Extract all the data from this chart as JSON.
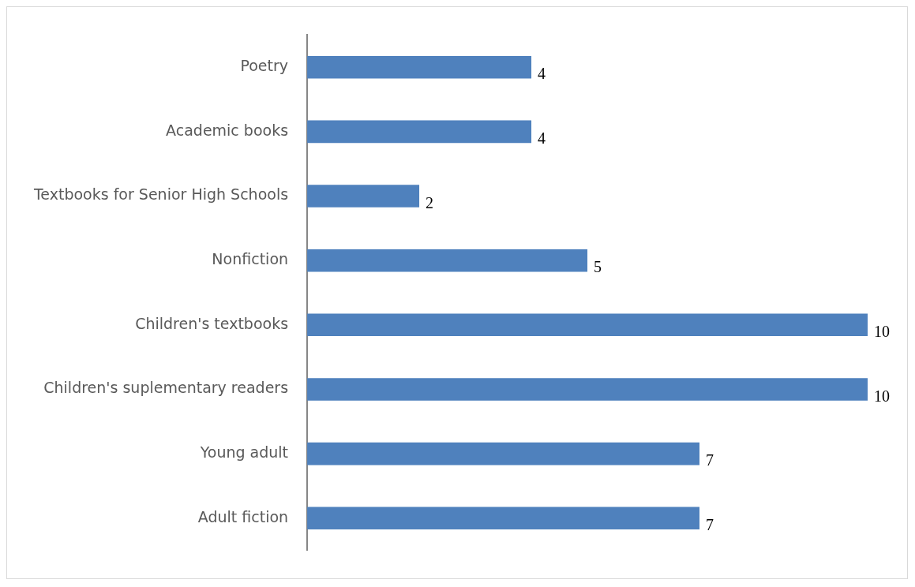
{
  "chart_data": {
    "type": "bar",
    "orientation": "horizontal",
    "categories": [
      "Poetry",
      "Academic books",
      "Textbooks for Senior High Schools",
      "Nonfiction",
      "Children's textbooks",
      "Children's suplementary readers",
      "Young adult",
      "Adult fiction"
    ],
    "values": [
      4,
      4,
      2,
      5,
      10,
      10,
      7,
      7
    ],
    "color": "#4f81bd",
    "data_labels": true,
    "grid": false,
    "legend": false,
    "tick_labels": "y"
  }
}
